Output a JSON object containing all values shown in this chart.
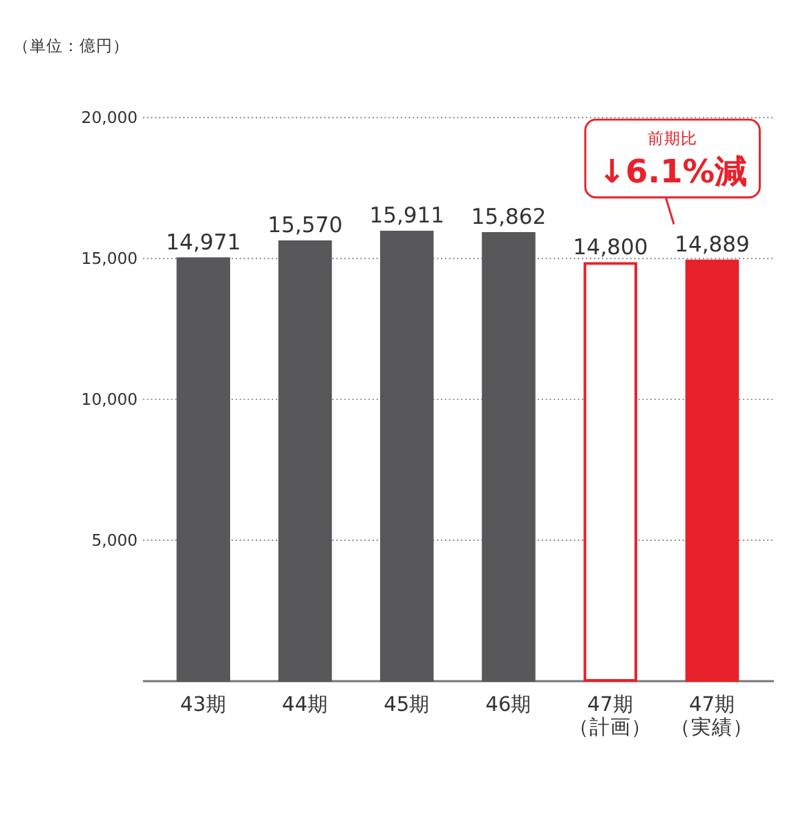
{
  "chart_data": {
    "type": "bar",
    "ylabel": "（単位：億円）",
    "categories": [
      "43期",
      "44期",
      "45期",
      "46期",
      "47期（計画）",
      "47期（実績）"
    ],
    "values": [
      14971,
      15570,
      15911,
      15862,
      14800,
      14889
    ],
    "colors": [
      "#58585a",
      "#58585a",
      "#58585a",
      "#58585a",
      "#ffffff",
      "#e8212a"
    ],
    "value_labels": [
      "14,971",
      "15,570",
      "15,911",
      "15,862",
      "14,800",
      "14,889"
    ],
    "ylim": [
      0,
      20000
    ],
    "yticks": [
      {
        "value": 5000,
        "label": "5,000"
      },
      {
        "value": 10000,
        "label": "10,000"
      },
      {
        "value": 15000,
        "label": "15,000"
      },
      {
        "value": 20000,
        "label": "20,000"
      }
    ],
    "grid": "y",
    "annotations": [
      "前期比",
      "↓6.1%減"
    ]
  }
}
